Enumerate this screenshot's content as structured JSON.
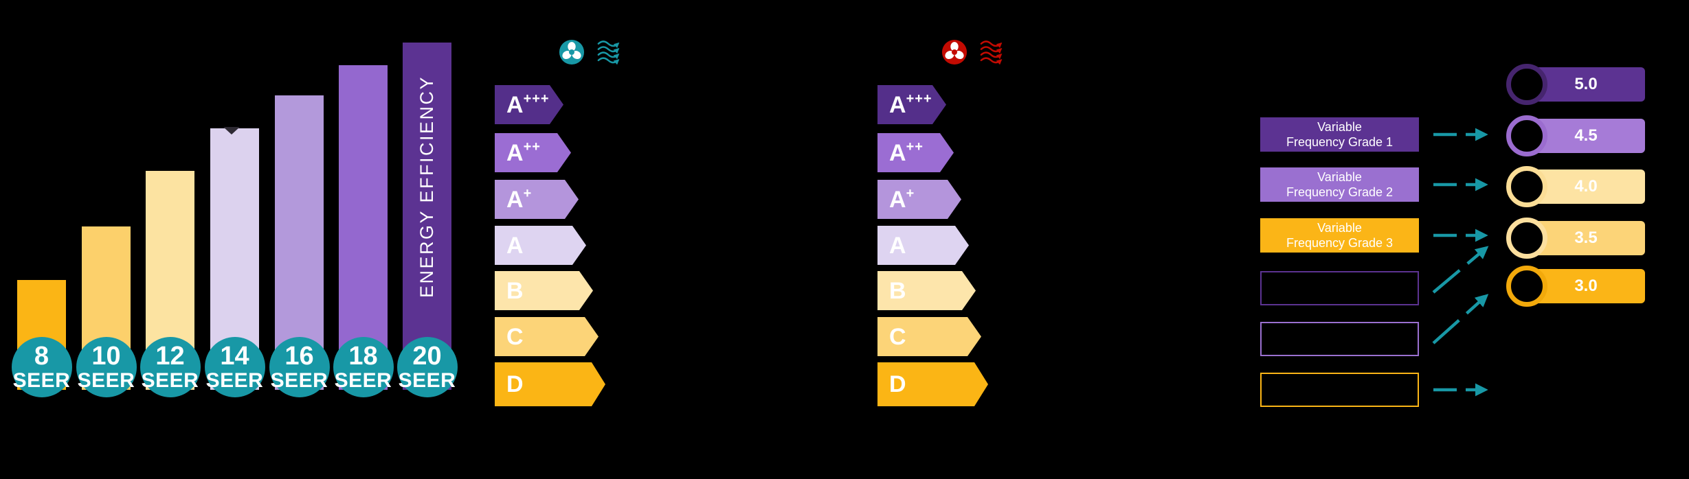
{
  "seer_chart": {
    "vertical_label": "ENERGY EFFICIENCY",
    "circle_color": "#1898A6",
    "marker_color": "#2E2A33",
    "bars": [
      {
        "value": "8",
        "unit": "SEER",
        "color": "#FBB515"
      },
      {
        "value": "10",
        "unit": "SEER",
        "color": "#FCD06B"
      },
      {
        "value": "12",
        "unit": "SEER",
        "color": "#FCE3A1"
      },
      {
        "value": "14",
        "unit": "SEER",
        "color": "#DCD2EE"
      },
      {
        "value": "16",
        "unit": "SEER",
        "color": "#B399DB"
      },
      {
        "value": "18",
        "unit": "SEER",
        "color": "#9468CF"
      },
      {
        "value": "20",
        "unit": "SEER",
        "color": "#5C3392"
      }
    ]
  },
  "rating_scales": [
    {
      "name": "cooling",
      "icon_color": "#1898A6",
      "grades": [
        {
          "letter": "A",
          "sup": "+++",
          "color": "#542F8A"
        },
        {
          "letter": "A",
          "sup": "++",
          "color": "#9B6DD3"
        },
        {
          "letter": "A",
          "sup": "+",
          "color": "#B495DC"
        },
        {
          "letter": "A",
          "sup": "",
          "color": "#DED4F1"
        },
        {
          "letter": "B",
          "sup": "",
          "color": "#FDE5AB"
        },
        {
          "letter": "C",
          "sup": "",
          "color": "#FCD478"
        },
        {
          "letter": "D",
          "sup": "",
          "color": "#FBB515"
        }
      ]
    },
    {
      "name": "heating",
      "icon_color": "#C30B02",
      "grades": [
        {
          "letter": "A",
          "sup": "+++",
          "color": "#542F8A"
        },
        {
          "letter": "A",
          "sup": "++",
          "color": "#9B6DD3"
        },
        {
          "letter": "A",
          "sup": "+",
          "color": "#B495DC"
        },
        {
          "letter": "A",
          "sup": "",
          "color": "#DED4F1"
        },
        {
          "letter": "B",
          "sup": "",
          "color": "#FDE5AB"
        },
        {
          "letter": "C",
          "sup": "",
          "color": "#FCD478"
        },
        {
          "letter": "D",
          "sup": "",
          "color": "#FBB515"
        }
      ]
    }
  ],
  "vfd_panel": {
    "arrow_color": "#1898A6",
    "boxes": [
      {
        "line1": "Variable",
        "line2": "Frequency Grade 1",
        "fill": "#5C3392",
        "outline": null
      },
      {
        "line1": "Variable",
        "line2": "Frequency Grade 2",
        "fill": "#9A70D0",
        "outline": null
      },
      {
        "line1": "Variable",
        "line2": "Frequency Grade 3",
        "fill": "#FBB517",
        "outline": null
      },
      {
        "line1": "",
        "line2": "",
        "fill": null,
        "outline": "#5C3392"
      },
      {
        "line1": "",
        "line2": "",
        "fill": null,
        "outline": "#9A70D0"
      },
      {
        "line1": "",
        "line2": "",
        "fill": null,
        "outline": "#FBB517"
      }
    ],
    "badges": [
      {
        "value": "5.0",
        "fill": "#5C3392",
        "ring": "#46256E"
      },
      {
        "value": "4.5",
        "fill": "#A67BD7",
        "ring": "#9B6CCF"
      },
      {
        "value": "4.0",
        "fill": "#FDE3A3",
        "ring": "#FBDD96"
      },
      {
        "value": "3.5",
        "fill": "#FCD478",
        "ring": "#FCDF9E"
      },
      {
        "value": "3.0",
        "fill": "#FBB517",
        "ring": "#F2A90B"
      }
    ],
    "connections": [
      {
        "from_box": 0,
        "to_badge": 1,
        "style": "dashed-horizontal"
      },
      {
        "from_box": 1,
        "to_badge": 2,
        "style": "dashed-horizontal"
      },
      {
        "from_box": 2,
        "to_badge": 3,
        "style": "dashed-horizontal"
      },
      {
        "from_box": 3,
        "to_badge": 3,
        "style": "dashed-diagonal"
      },
      {
        "from_box": 4,
        "to_badge": 4,
        "style": "dashed-diagonal"
      },
      {
        "from_box": 5,
        "to_badge": null,
        "style": "dashed-horizontal"
      }
    ]
  },
  "chart_data": [
    {
      "type": "bar",
      "title": "ENERGY EFFICIENCY",
      "categories": [
        "8 SEER",
        "10 SEER",
        "12 SEER",
        "14 SEER",
        "16 SEER",
        "18 SEER",
        "20 SEER"
      ],
      "values": [
        160,
        238,
        319,
        381,
        429,
        473,
        506
      ],
      "ylabel": "",
      "xlabel": "",
      "note": "no numeric axis shown; values are relative bar heights in px, increasing with SEER rating"
    },
    {
      "type": "table",
      "title": "Energy efficiency classes (cooling scale and heating scale)",
      "categories": [
        "A+++",
        "A++",
        "A+",
        "A",
        "B",
        "C",
        "D"
      ],
      "note": "two identical 7-step arrow scales; one marked with teal cooling fan/airflow icons, one with red heating fan/airflow icons; arrow width increases from A+++ to D"
    },
    {
      "type": "table",
      "title": "Variable Frequency Grade mapping",
      "rows": [
        [
          "Variable Frequency Grade 1",
          "4.5"
        ],
        [
          "Variable Frequency Grade 2",
          "4.0"
        ],
        [
          "Variable Frequency Grade 3",
          "3.5"
        ]
      ],
      "badge_values": [
        "5.0",
        "4.5",
        "4.0",
        "3.5",
        "3.0"
      ]
    }
  ]
}
